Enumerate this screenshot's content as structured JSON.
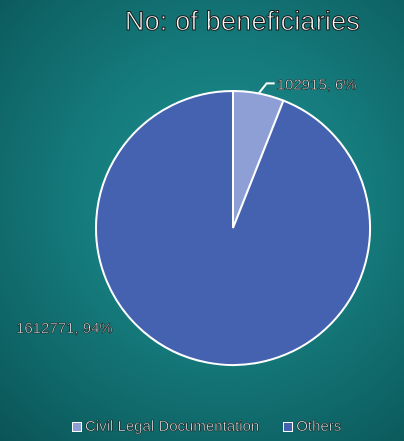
{
  "chart_data": {
    "type": "pie",
    "title": "No: of beneficiaries",
    "categories": [
      "Civil Legal Documentation",
      "Others"
    ],
    "values": [
      102915,
      1612771
    ],
    "percent_labels": [
      "6%",
      "94%"
    ],
    "data_labels": [
      "102915, 6%",
      "1612771, 94%"
    ],
    "colors": [
      "#8e9fd6",
      "#4462b0"
    ],
    "legend_position": "bottom"
  }
}
